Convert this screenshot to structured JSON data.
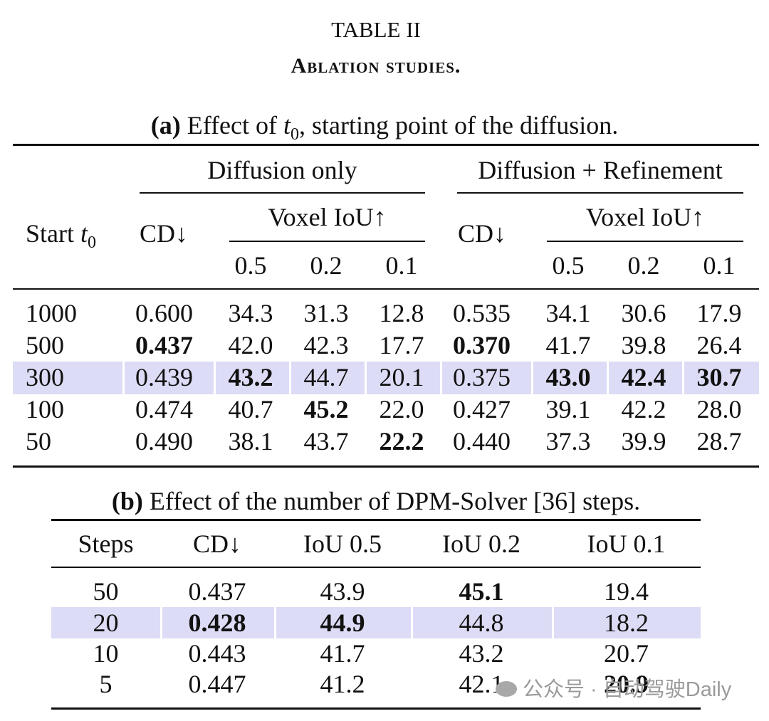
{
  "table_number": "TABLE II",
  "table_caption": "Ablation studies.",
  "a": {
    "caption_label": "(a)",
    "caption_text_before": "Effect of",
    "caption_var": "t",
    "caption_sub": "0",
    "caption_text_after": ", starting point of the diffusion.",
    "group_left": "Diffusion only",
    "group_right": "Diffusion + Refinement",
    "start_label": "Start",
    "start_var": "t",
    "start_sub": "0",
    "cd": "CD↓",
    "voxel_iou": "Voxel IoU↑",
    "thresholds": [
      "0.5",
      "0.2",
      "0.1"
    ],
    "rows": [
      [
        "1000",
        "0.600",
        "34.3",
        "31.3",
        "12.8",
        "0.535",
        "34.1",
        "30.6",
        "17.9"
      ],
      [
        "500",
        "0.437",
        "42.0",
        "42.3",
        "17.7",
        "0.370",
        "41.7",
        "39.8",
        "26.4"
      ],
      [
        "300",
        "0.439",
        "43.2",
        "44.7",
        "20.1",
        "0.375",
        "43.0",
        "42.4",
        "30.7"
      ],
      [
        "100",
        "0.474",
        "40.7",
        "45.2",
        "22.0",
        "0.427",
        "39.1",
        "42.2",
        "28.0"
      ],
      [
        "50",
        "0.490",
        "38.1",
        "43.7",
        "22.2",
        "0.440",
        "37.3",
        "39.9",
        "28.7"
      ]
    ],
    "bold_cells": [
      [
        1,
        1
      ],
      [
        1,
        5
      ],
      [
        2,
        2
      ],
      [
        2,
        6
      ],
      [
        2,
        7
      ],
      [
        2,
        8
      ],
      [
        3,
        3
      ],
      [
        4,
        4
      ]
    ],
    "highlight_row": 2
  },
  "b": {
    "caption_label": "(b)",
    "caption_text": "Effect of the number of DPM-Solver [36] steps.",
    "headers": [
      "Steps",
      "CD↓",
      "IoU 0.5",
      "IoU 0.2",
      "IoU 0.1"
    ],
    "rows": [
      [
        "50",
        "0.437",
        "43.9",
        "45.1",
        "19.4"
      ],
      [
        "20",
        "0.428",
        "44.9",
        "44.8",
        "18.2"
      ],
      [
        "10",
        "0.443",
        "41.7",
        "43.2",
        "20.7"
      ],
      [
        "5",
        "0.447",
        "41.2",
        "42.1",
        "20.9"
      ]
    ],
    "bold_cells": [
      [
        0,
        3
      ],
      [
        1,
        1
      ],
      [
        1,
        2
      ],
      [
        3,
        4
      ]
    ],
    "highlight_row": 1
  },
  "watermark": "公众号 · 自动驾驶Daily",
  "colors": {
    "highlight": "#dcdcf6",
    "text": "#111111",
    "watermark": "#9a9a9a"
  }
}
